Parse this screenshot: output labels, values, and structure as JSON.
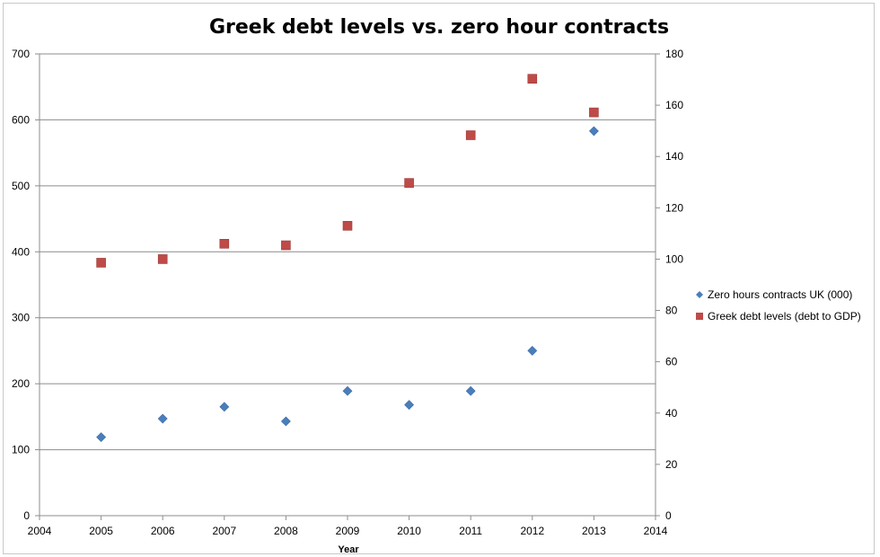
{
  "chart_data": {
    "type": "scatter",
    "title": "Greek debt levels vs. zero hour contracts",
    "xlabel": "Year",
    "ylabel": "",
    "y2label": "",
    "xlim": [
      2004,
      2014
    ],
    "ylim": [
      0,
      700
    ],
    "y2lim": [
      0,
      180
    ],
    "x_ticks": [
      2004,
      2005,
      2006,
      2007,
      2008,
      2009,
      2010,
      2011,
      2012,
      2013,
      2014
    ],
    "y_ticks": [
      0,
      100,
      200,
      300,
      400,
      500,
      600,
      700
    ],
    "y2_ticks": [
      0,
      20,
      40,
      60,
      80,
      100,
      120,
      140,
      160,
      180
    ],
    "grid": "horizontal",
    "legend_position": "right",
    "series": [
      {
        "name": "Zero hours contracts UK (000)",
        "axis": "left",
        "marker": "diamond",
        "color": "#4a7ebb",
        "x": [
          2005,
          2006,
          2007,
          2008,
          2009,
          2010,
          2011,
          2012,
          2013
        ],
        "y": [
          119,
          147,
          165,
          143,
          189,
          168,
          189,
          250,
          583
        ]
      },
      {
        "name": "Greek debt levels (debt to GDP)",
        "axis": "right",
        "marker": "square",
        "color": "#be4b48",
        "x": [
          2005,
          2006,
          2007,
          2008,
          2009,
          2010,
          2011,
          2012,
          2013
        ],
        "y": [
          98.6,
          100,
          106,
          105.4,
          113,
          129.7,
          148.3,
          170.3,
          157.2
        ]
      }
    ]
  }
}
